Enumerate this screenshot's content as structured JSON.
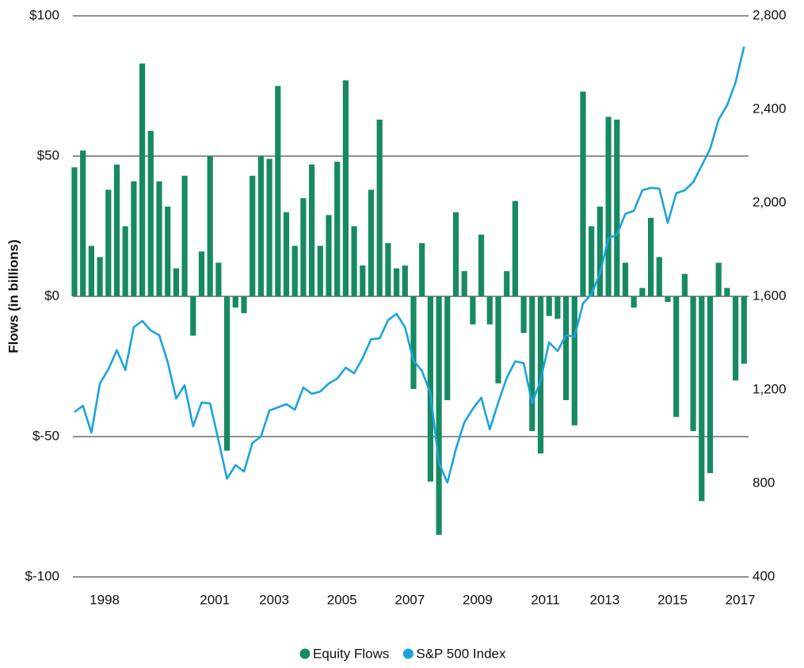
{
  "chart_data": {
    "type": "bar",
    "y_label": "Flows (in billions)",
    "categories": [
      null,
      null,
      null,
      "1998",
      null,
      null,
      null,
      null,
      null,
      null,
      null,
      null,
      null,
      null,
      null,
      null,
      "2001",
      null,
      null,
      null,
      null,
      null,
      null,
      "2003",
      null,
      null,
      null,
      null,
      null,
      null,
      null,
      "2005",
      null,
      null,
      null,
      null,
      null,
      null,
      null,
      "2007",
      null,
      null,
      null,
      null,
      null,
      null,
      null,
      "2009",
      null,
      null,
      null,
      null,
      null,
      null,
      null,
      "2011",
      null,
      null,
      null,
      null,
      null,
      null,
      "2013",
      null,
      null,
      null,
      null,
      null,
      null,
      null,
      "2015",
      null,
      null,
      null,
      null,
      null,
      null,
      null,
      "2017",
      null
    ],
    "series": [
      {
        "name": "Equity Flows",
        "type": "bar",
        "color": "#178a62",
        "values": [
          46,
          52,
          18,
          14,
          38,
          47,
          25,
          41,
          83,
          59,
          41,
          32,
          10,
          43,
          -14,
          16,
          50,
          12,
          -55,
          -4,
          -6,
          43,
          50,
          49,
          75,
          30,
          18,
          35,
          47,
          18,
          29,
          48,
          77,
          25,
          11,
          38,
          63,
          19,
          10,
          11,
          -33,
          19,
          -66,
          -85,
          -37,
          30,
          9,
          -10,
          22,
          -10,
          -31,
          9,
          34,
          -13,
          -48,
          -56,
          -7,
          -8,
          -37,
          -46,
          73,
          25,
          32,
          64,
          63,
          12,
          -4,
          3,
          28,
          14,
          -2,
          -43,
          8,
          -48,
          -73,
          -63,
          12,
          3,
          -30,
          -24
        ]
      },
      {
        "name": "S&P 500 Index",
        "type": "line",
        "axis": "y2",
        "color": "#1ba3dd",
        "values": [
          1105,
          1132,
          1017,
          1227,
          1288,
          1370,
          1285,
          1468,
          1495,
          1454,
          1434,
          1319,
          1163,
          1220,
          1044,
          1146,
          1142,
          983,
          820,
          878,
          851,
          973,
          1000,
          1112,
          1125,
          1139,
          1115,
          1210,
          1183,
          1193,
          1227,
          1248,
          1295,
          1271,
          1336,
          1417,
          1420,
          1498,
          1525,
          1468,
          1325,
          1281,
          1186,
          888,
          803,
          946,
          1061,
          1119,
          1166,
          1031,
          1146,
          1251,
          1322,
          1315,
          1142,
          1241,
          1403,
          1366,
          1434,
          1427,
          1570,
          1610,
          1698,
          1848,
          1864,
          1953,
          1966,
          2054,
          2064,
          2061,
          1915,
          2041,
          2054,
          2088,
          2159,
          2231,
          2356,
          2417,
          2515,
          2668
        ]
      }
    ],
    "ylim": [
      -100,
      100
    ],
    "yticks": [
      {
        "value": -100,
        "label": "$-100"
      },
      {
        "value": -50,
        "label": "$-50"
      },
      {
        "value": 0,
        "label": "$0"
      },
      {
        "value": 50,
        "label": "$50"
      },
      {
        "value": 100,
        "label": "$100"
      }
    ],
    "y2lim": [
      400,
      2800
    ],
    "y2ticks": [
      400,
      800,
      {
        "value": 1200,
        "label": "1,200"
      },
      {
        "value": 1600,
        "label": "1,600"
      },
      {
        "value": 2000,
        "label": "2,000"
      },
      {
        "value": 2400,
        "label": "2,400"
      },
      {
        "value": 2800,
        "label": "2,800"
      }
    ],
    "grid": true,
    "legend": "bottom"
  }
}
